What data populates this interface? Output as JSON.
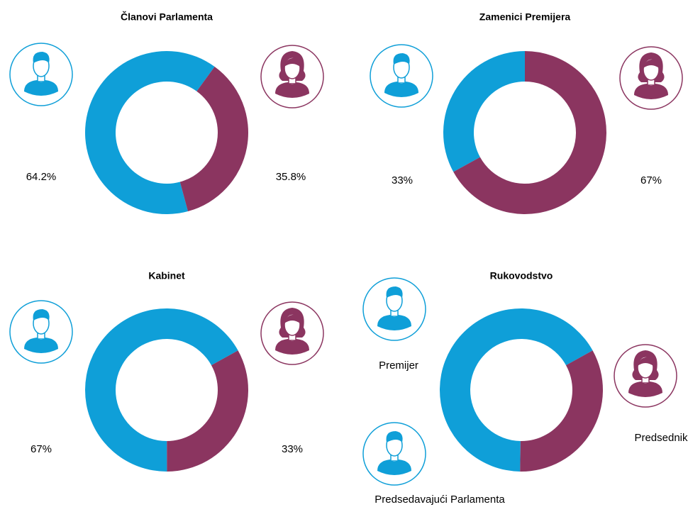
{
  "chart_data": [
    {
      "type": "pie",
      "title": "Članovi Parlamenta",
      "values": [
        64.2,
        35.8
      ],
      "value_labels": [
        "64.2%",
        "35.8%"
      ],
      "colors": [
        "#0f9fd8",
        "#8b3560"
      ]
    },
    {
      "type": "pie",
      "title": "Zamenici Premijera",
      "values": [
        33,
        67
      ],
      "value_labels": [
        "33%",
        "67%"
      ],
      "colors": [
        "#0f9fd8",
        "#8b3560"
      ]
    },
    {
      "type": "pie",
      "title": "Kabinet",
      "values": [
        67,
        33
      ],
      "value_labels": [
        "67%",
        "33%"
      ],
      "colors": [
        "#0f9fd8",
        "#8b3560"
      ]
    },
    {
      "type": "pie",
      "title": "Rukovodstvo",
      "values": [
        66.7,
        33.3
      ],
      "colors": [
        "#0f9fd8",
        "#8b3560"
      ],
      "annotations": [
        "Premijer",
        "Predsedavajući Parlamenta",
        "Predsednik"
      ]
    }
  ]
}
